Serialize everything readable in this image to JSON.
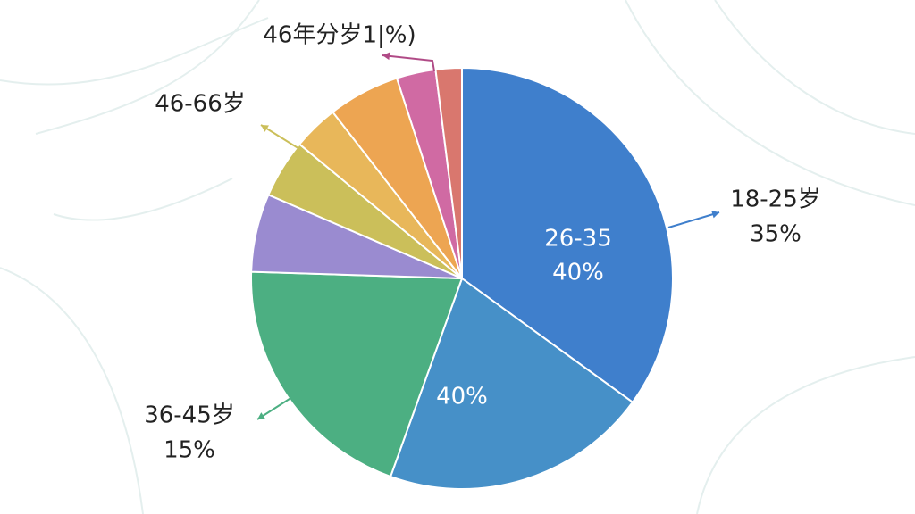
{
  "chart_data": {
    "type": "pie",
    "values": [
      35,
      20.5,
      20,
      6,
      4.5,
      3.5,
      5.5,
      3,
      2
    ],
    "colors": [
      "#3f7fcc",
      "#4690c8",
      "#4caf82",
      "#9a8bd0",
      "#cbbf5a",
      "#e8b75a",
      "#eda552",
      "#d06aa3",
      "#d9776e"
    ],
    "annotations": [
      "26-35",
      "40%",
      "40%",
      "18-25岁",
      "35%",
      "36-45岁",
      "15%",
      "46-66岁",
      "46年分岁1|%)"
    ]
  }
}
